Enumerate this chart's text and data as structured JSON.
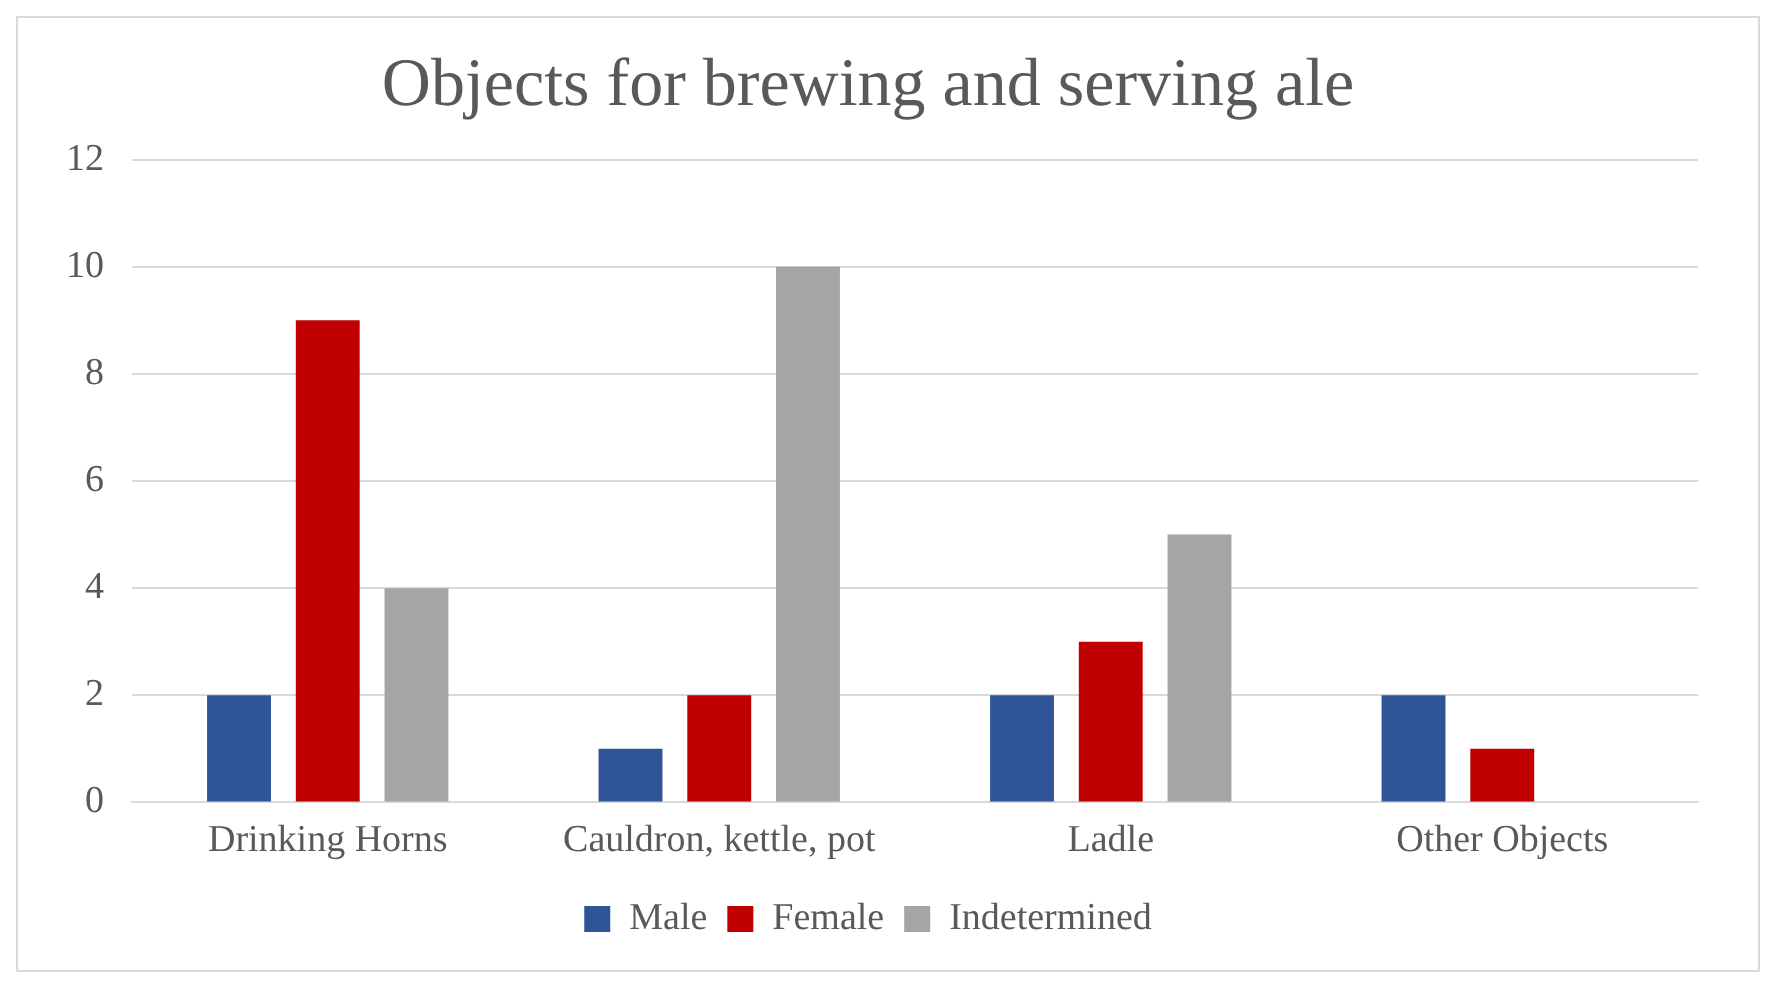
{
  "chart_data": {
    "type": "bar",
    "title": "Objects for brewing and serving ale",
    "categories": [
      "Drinking Horns",
      "Cauldron, kettle, pot",
      "Ladle",
      "Other Objects"
    ],
    "series": [
      {
        "name": "Male",
        "color": "#2f5597",
        "values": [
          2,
          1,
          2,
          2
        ]
      },
      {
        "name": "Female",
        "color": "#c00000",
        "values": [
          9,
          2,
          3,
          1
        ]
      },
      {
        "name": "Indetermined",
        "color": "#a5a5a5",
        "values": [
          4,
          10,
          5,
          0
        ]
      }
    ],
    "ylim": [
      0,
      12
    ],
    "yticks": [
      0,
      2,
      4,
      6,
      8,
      10,
      12
    ],
    "grid": "y",
    "legend": "bottom"
  }
}
